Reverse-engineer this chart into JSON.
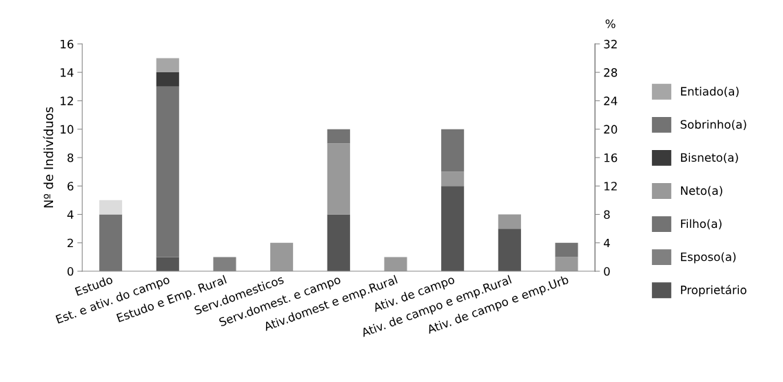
{
  "chart_data": {
    "type": "bar",
    "stacked": true,
    "ylabel": "Nº de Indivíduos",
    "y2label": "%",
    "categories": [
      "Estudo",
      "Est. e ativ. do campo",
      "Estudo e Emp. Rural",
      "Serv.domesticos",
      "Serv.domest. e campo",
      "Ativ.domest e emp.Rural",
      "Ativ. de campo",
      "Ativ. de campo e emp.Rural",
      "Ativ. de campo e emp.Urb"
    ],
    "series": [
      {
        "name": "Proprietário",
        "color": "#555555",
        "values": [
          0,
          1,
          0,
          0,
          4,
          0,
          6,
          3,
          0
        ]
      },
      {
        "name": "Esposo(a)",
        "color": "#808080",
        "values": [
          0,
          0,
          1,
          0,
          0,
          0,
          0,
          0,
          0
        ]
      },
      {
        "name": "Filho(a)",
        "color": "#737373",
        "values": [
          4,
          12,
          0,
          0,
          0,
          0,
          0,
          0,
          0
        ]
      },
      {
        "name": "Neto(a)",
        "color": "#999999",
        "values": [
          0,
          0,
          0,
          2,
          5,
          1,
          1,
          1,
          1
        ]
      },
      {
        "name": "Bisneto(a)",
        "color": "#3a3a3a",
        "values": [
          0,
          1,
          0,
          0,
          0,
          0,
          0,
          0,
          0
        ]
      },
      {
        "name": "Sobrinho(a)",
        "color": "#737373",
        "colors": [
          "#dcdcdc",
          "#737373",
          "#737373",
          "#737373",
          "#737373",
          "#737373",
          "#737373",
          "#737373",
          "#737373"
        ],
        "values": [
          1,
          0,
          0,
          0,
          1,
          0,
          3,
          0,
          1
        ]
      },
      {
        "name": "Entiado(a)",
        "color": "#a6a6a6",
        "values": [
          0,
          1,
          0,
          0,
          0,
          0,
          0,
          0,
          0
        ]
      }
    ],
    "ylim": [
      0,
      16
    ],
    "yticks": [
      0,
      2,
      4,
      6,
      8,
      10,
      12,
      14,
      16
    ],
    "y2lim": [
      0,
      32
    ],
    "y2ticks": [
      0,
      4,
      8,
      12,
      16,
      20,
      24,
      28,
      32
    ],
    "grid": false,
    "legend": "right"
  }
}
